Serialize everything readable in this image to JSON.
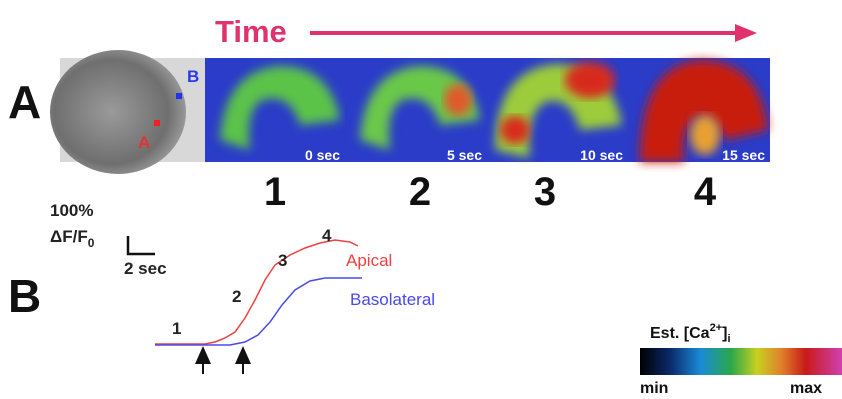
{
  "header": {
    "title": "Time"
  },
  "panel_a": {
    "label": "A",
    "photo_markers": [
      "B",
      "A"
    ],
    "frames": [
      {
        "time": "0 sec",
        "number": "1"
      },
      {
        "time": "5 sec",
        "number": "2"
      },
      {
        "time": "10 sec",
        "number": "3"
      },
      {
        "time": "15 sec",
        "number": "4"
      }
    ]
  },
  "panel_b": {
    "label": "B",
    "scale": {
      "amplitude": "100%",
      "quantity": "ΔF/F",
      "quantity_subscript": "0",
      "duration": "2 sec"
    },
    "trace_markers": [
      "1",
      "2",
      "3",
      "4"
    ],
    "traces": [
      "Apical",
      "Basolateral"
    ]
  },
  "colorbar": {
    "title": "Est. [Ca",
    "title_superscript": "2+",
    "title_close": "]",
    "title_subscript": "i",
    "min": "min",
    "max": "max"
  }
}
